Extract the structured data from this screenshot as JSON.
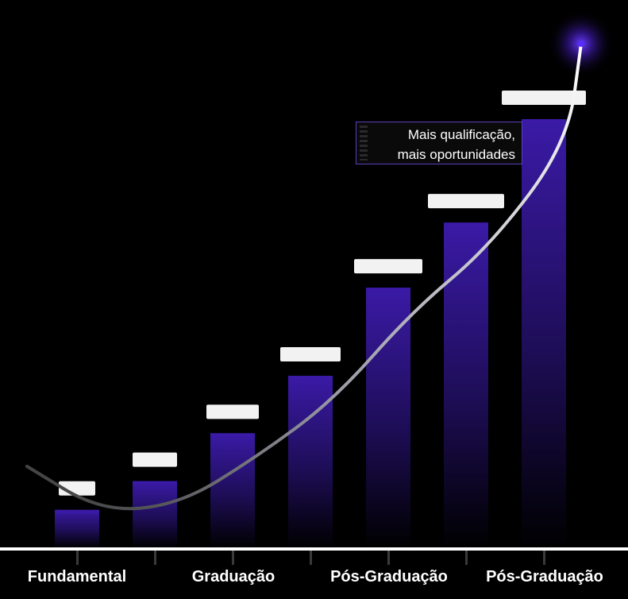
{
  "chart_data": {
    "type": "bar",
    "categories": [
      "",
      "",
      "",
      "",
      "",
      "",
      ""
    ],
    "values": [
      1.0,
      1.75,
      3.0,
      4.5,
      6.8,
      8.5,
      11.2
    ],
    "x_axis_labels": [
      "Fundamental",
      "",
      "Graduação",
      "",
      "Pós-Graduação",
      "",
      "Pós-Graduação"
    ],
    "annotation": {
      "line1": "Mais qualificação,",
      "line2": "mais oportunidades"
    },
    "grid": false,
    "colors": {
      "bar_top": "#3a1aa6",
      "bar_bottom": "#000000",
      "curve": "#e8e8ee",
      "axis": "#ffffff",
      "glow": "#5a2bff",
      "background": "#000000"
    }
  }
}
